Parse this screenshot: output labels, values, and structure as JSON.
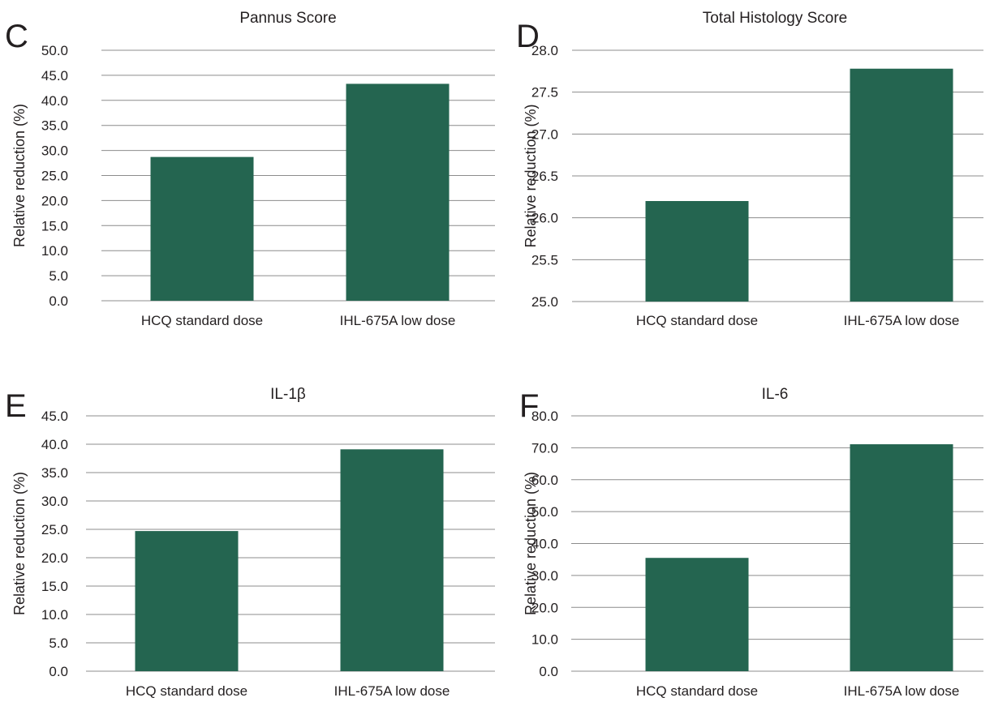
{
  "colors": {
    "bar": "#246550",
    "grid": "#8c8c8c",
    "text": "#231f20"
  },
  "chart_data": [
    {
      "panel_label": "C",
      "type": "bar",
      "title": "Pannus Score",
      "ylabel": "Relative reduction (%)",
      "xlabel": "",
      "categories": [
        "HCQ standard dose",
        "IHL-675A low dose"
      ],
      "values": [
        28.7,
        43.3
      ],
      "ylim": [
        0,
        50
      ],
      "yticks": [
        "0.0",
        "5.0",
        "10.0",
        "15.0",
        "20.0",
        "25.0",
        "30.0",
        "35.0",
        "40.0",
        "45.0",
        "50.0"
      ],
      "grid": true,
      "legend": "none"
    },
    {
      "panel_label": "D",
      "type": "bar",
      "title": "Total Histology Score",
      "ylabel": "Relative reduction (%)",
      "xlabel": "",
      "categories": [
        "HCQ standard dose",
        "IHL-675A low dose"
      ],
      "values": [
        26.2,
        27.78
      ],
      "ylim": [
        25,
        28
      ],
      "yticks": [
        "25.0",
        "25.5",
        "26.0",
        "26.5",
        "27.0",
        "27.5",
        "28.0"
      ],
      "grid": true,
      "legend": "none"
    },
    {
      "panel_label": "E",
      "type": "bar",
      "title": "IL-1β",
      "ylabel": "Relative reduction (%)",
      "xlabel": "",
      "categories": [
        "HCQ standard dose",
        "IHL-675A low dose"
      ],
      "values": [
        24.7,
        39.1
      ],
      "ylim": [
        0,
        45
      ],
      "yticks": [
        "0.0",
        "5.0",
        "10.0",
        "15.0",
        "20.0",
        "25.0",
        "30.0",
        "35.0",
        "40.0",
        "45.0"
      ],
      "grid": true,
      "legend": "none"
    },
    {
      "panel_label": "F",
      "type": "bar",
      "title": "IL-6",
      "ylabel": "Relative reduction (%)",
      "xlabel": "",
      "categories": [
        "HCQ standard dose",
        "IHL-675A low dose"
      ],
      "values": [
        35.5,
        71.1
      ],
      "ylim": [
        0,
        80
      ],
      "yticks": [
        "0.0",
        "10.0",
        "20.0",
        "30.0",
        "40.0",
        "50.0",
        "60.0",
        "70.0",
        "80.0"
      ],
      "grid": true,
      "legend": "none"
    }
  ]
}
